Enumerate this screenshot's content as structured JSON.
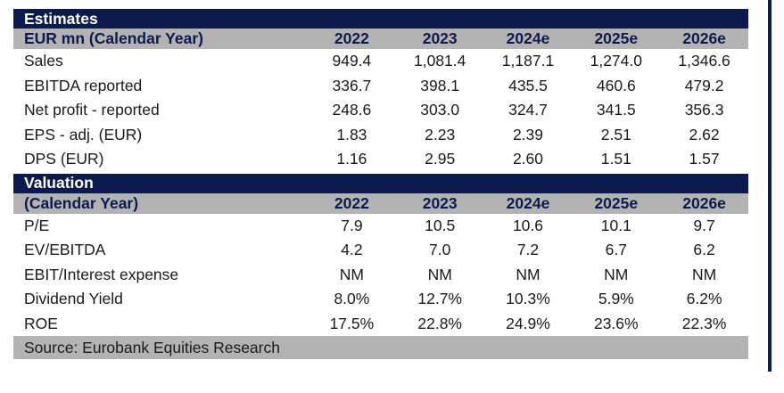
{
  "estimates": {
    "title": "Estimates",
    "header": [
      "EUR mn (Calendar Year)",
      "2022",
      "2023",
      "2024e",
      "2025e",
      "2026e"
    ],
    "rows": [
      [
        "Sales",
        "949.4",
        "1,081.4",
        "1,187.1",
        "1,274.0",
        "1,346.6"
      ],
      [
        "EBITDA reported",
        "336.7",
        "398.1",
        "435.5",
        "460.6",
        "479.2"
      ],
      [
        "Net profit - reported",
        "248.6",
        "303.0",
        "324.7",
        "341.5",
        "356.3"
      ],
      [
        "EPS - adj. (EUR)",
        "1.83",
        "2.23",
        "2.39",
        "2.51",
        "2.62"
      ],
      [
        "DPS (EUR)",
        "1.16",
        "2.95",
        "2.60",
        "1.51",
        "1.57"
      ]
    ]
  },
  "valuation": {
    "title": "Valuation",
    "header": [
      "(Calendar Year)",
      "2022",
      "2023",
      "2024e",
      "2025e",
      "2026e"
    ],
    "rows": [
      [
        "P/E",
        "7.9",
        "10.5",
        "10.6",
        "10.1",
        "9.7"
      ],
      [
        "EV/EBITDA",
        "4.2",
        "7.0",
        "7.2",
        "6.7",
        "6.2"
      ],
      [
        "EBIT/Interest expense",
        "NM",
        "NM",
        "NM",
        "NM",
        "NM"
      ],
      [
        "Dividend Yield",
        "8.0%",
        "12.7%",
        "10.3%",
        "5.9%",
        "6.2%"
      ],
      [
        "ROE",
        "17.5%",
        "22.8%",
        "24.9%",
        "23.6%",
        "22.3%"
      ]
    ]
  },
  "source": "Source: Eurobank Equities Research"
}
